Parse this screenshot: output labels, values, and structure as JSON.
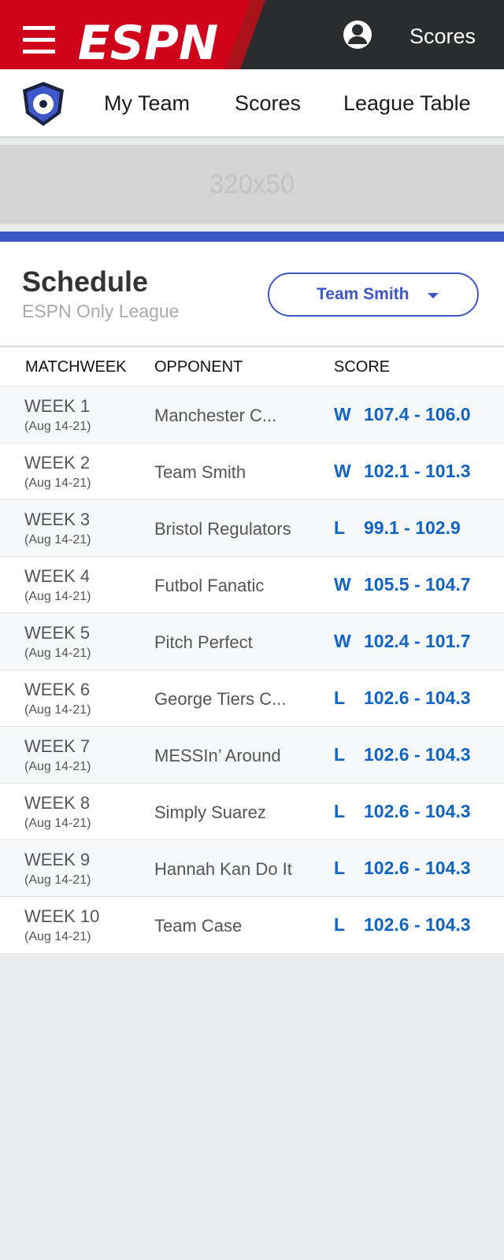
{
  "header": {
    "logo": "ESPN",
    "link": "Scores"
  },
  "nav": {
    "items": [
      "My Team",
      "Scores",
      "League Table"
    ]
  },
  "ad": {
    "label": "320x50"
  },
  "schedule": {
    "title": "Schedule",
    "subtitle": "ESPN Only League",
    "team_select": "Team Smith"
  },
  "table": {
    "columns": [
      "MATCHWEEK",
      "OPPONENT",
      "SCORE"
    ],
    "rows": [
      {
        "week": "WEEK 1",
        "dates": "(Aug 14-21)",
        "opponent": "Manchester C...",
        "result": "W",
        "score": "107.4 - 106.0"
      },
      {
        "week": "WEEK 2",
        "dates": "(Aug 14-21)",
        "opponent": "Team Smith",
        "result": "W",
        "score": "102.1 - 101.3"
      },
      {
        "week": "WEEK 3",
        "dates": "(Aug 14-21)",
        "opponent": "Bristol Regulators",
        "result": "L",
        "score": "99.1 - 102.9"
      },
      {
        "week": "WEEK 4",
        "dates": "(Aug 14-21)",
        "opponent": "Futbol Fanatic",
        "result": "W",
        "score": "105.5 - 104.7"
      },
      {
        "week": "WEEK 5",
        "dates": "(Aug 14-21)",
        "opponent": "Pitch Perfect",
        "result": "W",
        "score": "102.4 - 101.7"
      },
      {
        "week": "WEEK 6",
        "dates": "(Aug 14-21)",
        "opponent": "George Tiers C...",
        "result": "L",
        "score": "102.6 - 104.3"
      },
      {
        "week": "WEEK 7",
        "dates": "(Aug 14-21)",
        "opponent": "MESSIn’ Around",
        "result": "L",
        "score": "102.6 - 104.3"
      },
      {
        "week": "WEEK 8",
        "dates": "(Aug 14-21)",
        "opponent": "Simply Suarez",
        "result": "L",
        "score": "102.6 - 104.3"
      },
      {
        "week": "WEEK 9",
        "dates": "(Aug 14-21)",
        "opponent": "Hannah Kan Do It",
        "result": "L",
        "score": "102.6 - 104.3"
      },
      {
        "week": "WEEK 10",
        "dates": "(Aug 14-21)",
        "opponent": "Team Case",
        "result": "L",
        "score": "102.6 - 104.3"
      }
    ]
  }
}
